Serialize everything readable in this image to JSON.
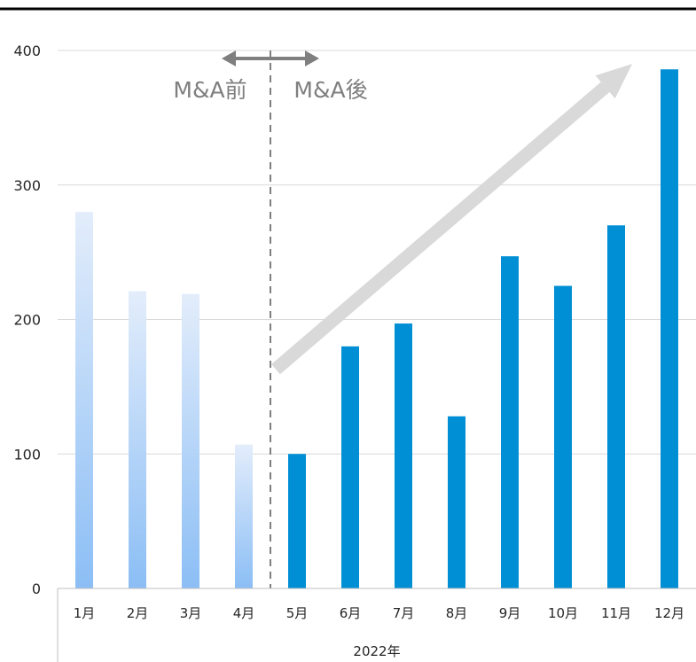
{
  "chart_data": {
    "type": "bar",
    "categories": [
      "1月",
      "2月",
      "3月",
      "4月",
      "5月",
      "6月",
      "7月",
      "8月",
      "9月",
      "10月",
      "11月",
      "12月"
    ],
    "values": [
      280,
      221,
      219,
      107,
      100,
      180,
      197,
      128,
      247,
      225,
      270,
      386
    ],
    "period_split_index": 4,
    "colors": {
      "after": "#008fd5",
      "before_gradient_top": "#e3edfb",
      "before_gradient_bottom": "#8bbef5",
      "gridline": "#d9d9d9",
      "axis_line": "#bfbfbf",
      "annotation": "#7f7f7f",
      "trend_arrow": "#d9d9d9",
      "divider": "#7f7f7f",
      "top_rule": "#000000"
    },
    "ylim": [
      0,
      400
    ],
    "yticks": [
      0,
      100,
      200,
      300,
      400
    ],
    "xlabel": "2022年",
    "annotations": {
      "before_label": "M&A前",
      "after_label": "M&A後"
    },
    "grid": true,
    "legend": "none",
    "trend_arrow": {
      "from_category_index": 4.1,
      "from_value": 163,
      "to_category_index": 10.8,
      "to_value": 390
    }
  }
}
